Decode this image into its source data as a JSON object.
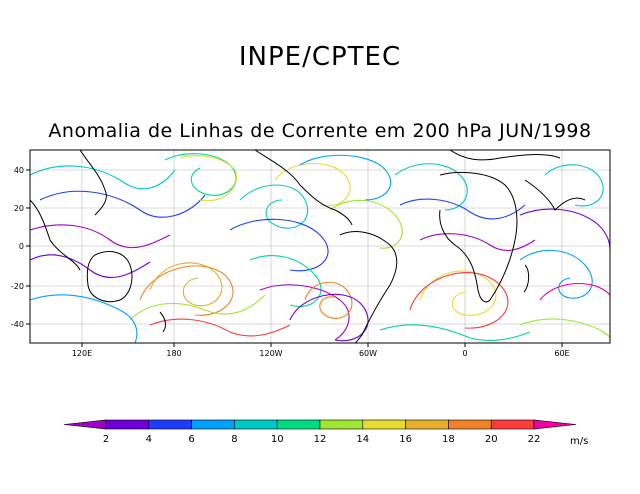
{
  "header": {
    "title": "INPE/CPTEC",
    "subtitle": "Anomalia de Linhas de Corrente em 200 hPa JUN/1998"
  },
  "map": {
    "lon_ticks": [
      "120E",
      "180",
      "120W",
      "60W",
      "0",
      "60E"
    ],
    "lat_ticks": [
      "40",
      "20",
      "0",
      "-20",
      "-40"
    ],
    "grid_color": "#b8b8b8",
    "land_color": "#000000"
  },
  "colorbar": {
    "labels": [
      "2",
      "4",
      "6",
      "8",
      "10",
      "12",
      "14",
      "16",
      "18",
      "20",
      "22"
    ],
    "unit": "m/s",
    "colors": [
      "#a000c8",
      "#6e00dc",
      "#1e3cff",
      "#00a0ff",
      "#00c8c8",
      "#00dc82",
      "#a0e632",
      "#e6dc32",
      "#e6af2d",
      "#f08228",
      "#fa3c3c",
      "#f000a0"
    ]
  }
}
